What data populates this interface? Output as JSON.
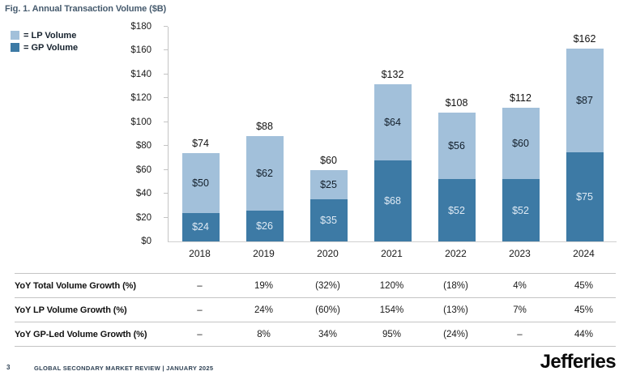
{
  "title": "Fig. 1. Annual Transaction Volume ($B)",
  "legend": {
    "items": [
      {
        "name": "lp",
        "label": "= LP Volume",
        "color": "#a2c0da"
      },
      {
        "name": "gp",
        "label": "= GP Volume",
        "color": "#3d7aa5"
      }
    ]
  },
  "chart_data": {
    "type": "bar",
    "stacked": true,
    "title": "Fig. 1. Annual Transaction Volume ($B)",
    "categories": [
      "2018",
      "2019",
      "2020",
      "2021",
      "2022",
      "2023",
      "2024"
    ],
    "series": [
      {
        "name": "LP Volume",
        "color": "#a2c0da",
        "values": [
          50,
          62,
          25,
          64,
          56,
          60,
          87
        ]
      },
      {
        "name": "GP Volume",
        "color": "#3d7aa5",
        "values": [
          24,
          26,
          35,
          68,
          52,
          52,
          75
        ]
      }
    ],
    "totals": [
      74,
      88,
      60,
      132,
      108,
      112,
      162
    ],
    "value_prefix": "$",
    "xlabel": "",
    "ylabel": "",
    "ylim": [
      0,
      180
    ],
    "ytick_step": 20,
    "grid": false,
    "legend_position": "top-left",
    "yoy_growth_table": {
      "rows": [
        {
          "label": "YoY Total Volume Growth (%)",
          "values": [
            "–",
            "19%",
            "(32%)",
            "120%",
            "(18%)",
            "4%",
            "45%"
          ]
        },
        {
          "label": "YoY LP Volume Growth (%)",
          "values": [
            "–",
            "24%",
            "(60%)",
            "154%",
            "(13%)",
            "7%",
            "45%"
          ]
        },
        {
          "label": "YoY GP-Led Volume Growth (%)",
          "values": [
            "–",
            "8%",
            "34%",
            "95%",
            "(24%)",
            "–",
            "44%"
          ]
        }
      ]
    }
  },
  "footer": {
    "page_number": "3",
    "text": "GLOBAL SECONDARY MARKET REVIEW  |  JANUARY 2025",
    "brand": "Jefferies"
  },
  "colors": {
    "lp": "#a2c0da",
    "gp": "#3d7aa5",
    "title_text": "#455a6d",
    "axis_line": "#c4c4c4",
    "baseline": "#d0d0d0",
    "bar_label_on_light": "#14202c",
    "bar_label_on_dark": "#dfeaf4",
    "table_line": "#c4c4c4",
    "footer_text": "#2e4154",
    "brand_text": "#0a0a0a"
  }
}
